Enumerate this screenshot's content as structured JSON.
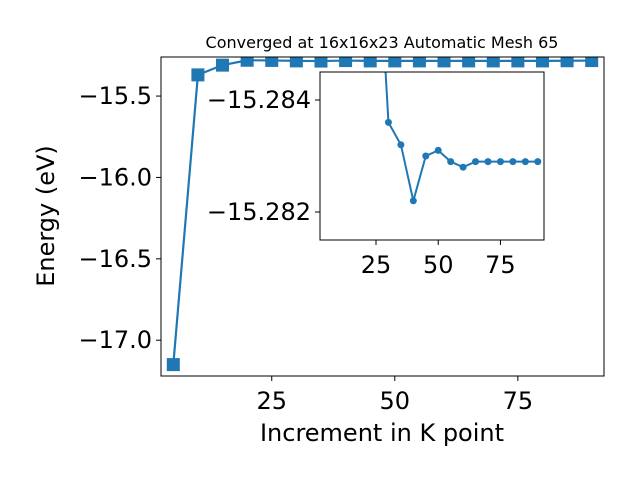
{
  "chart_data": {
    "type": "line",
    "title": "Converged at 16x16x23 Automatic Mesh 65",
    "xlabel": "Increment in K point",
    "ylabel": "Energy (eV)",
    "color": "#1f77b4",
    "marker": "square",
    "grid": false,
    "xlim": [
      2.5,
      92.5
    ],
    "ylim": [
      -17.22,
      -15.26
    ],
    "xticks": [
      25,
      50,
      75
    ],
    "xtick_labels": [
      "25",
      "50",
      "75"
    ],
    "yticks": [
      -17.0,
      -16.5,
      -16.0,
      -15.5
    ],
    "ytick_labels": [
      "−17.0",
      "−16.5",
      "−16.0",
      "−15.5"
    ],
    "x": [
      5,
      10,
      15,
      20,
      25,
      30,
      35,
      40,
      45,
      50,
      55,
      60,
      65,
      70,
      75,
      80,
      85,
      90
    ],
    "y": [
      -17.15,
      -15.37,
      -15.31,
      -15.28,
      -15.281,
      -15.284,
      -15.285,
      -15.282,
      -15.284,
      -15.284,
      -15.284,
      -15.284,
      -15.284,
      -15.284,
      -15.284,
      -15.284,
      -15.283,
      -15.282
    ],
    "inset": {
      "type": "line",
      "marker": "circle",
      "xlim": [
        2.5,
        92.5
      ],
      "ylim": [
        -15.2815,
        -15.2845
      ],
      "xticks": [
        25,
        50,
        75
      ],
      "xtick_labels": [
        "25",
        "50",
        "75"
      ],
      "yticks": [
        -15.284,
        -15.282
      ],
      "ytick_labels": [
        "−15.284",
        "−15.282"
      ],
      "x": [
        25,
        30,
        35,
        40,
        45,
        50,
        55,
        60,
        65,
        70,
        75,
        80,
        85,
        90
      ],
      "y": [
        -15.2875,
        -15.2836,
        -15.2832,
        -15.2822,
        -15.283,
        -15.2831,
        -15.2829,
        -15.2828,
        -15.2829,
        -15.2829,
        -15.2829,
        -15.2829,
        -15.2829,
        -15.2829
      ]
    }
  }
}
